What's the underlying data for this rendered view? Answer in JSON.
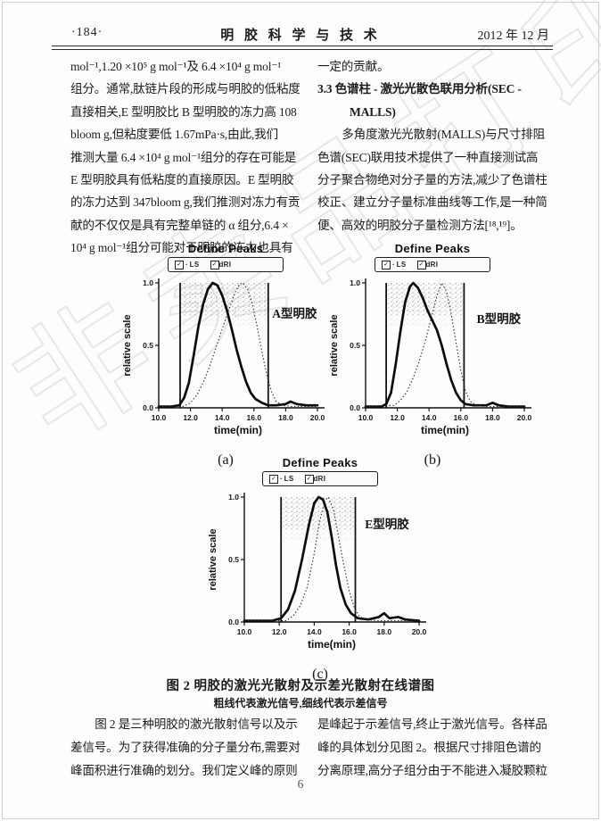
{
  "header": {
    "page_no": "·184·",
    "journal_title": "明 胶 科 学 与 技 术",
    "issue_date": "2012 年 12 月"
  },
  "left_column": {
    "lines": [
      "mol⁻¹,1.20 ×10⁵ g mol⁻¹及 6.4 ×10⁴ g mol⁻¹",
      "组分。通常,肽链片段的形成与明胶的低粘度",
      "直接相关,E 型明胶比 B 型明胶的冻力高 108",
      "bloom g,但粘度要低 1.67mPa·s,由此,我们",
      "推测大量 6.4 ×10⁴ g mol⁻¹组分的存在可能是",
      "E 型明胶具有低粘度的直接原因。E 型明胶",
      "的冻力达到 347bloom g,我们推测对冻力有贡",
      "献的不仅仅是具有完整单链的 α 组分,6.4 ×",
      "10⁴ g mol⁻¹组分可能对于明胶的冻力也具有"
    ]
  },
  "right_column": {
    "intro_line": "一定的贡献。",
    "section_heading_line1": "3.3  色谱柱 - 激光光散色联用分析(SEC -",
    "section_heading_line2": "MALLS)",
    "para_lines": [
      "多角度激光光散射(MALLS)与尺寸排阻",
      "色谱(SEC)联用技术提供了一种直接测试高",
      "分子聚合物绝对分子量的方法,减少了色谱柱",
      "校正、建立分子量标准曲线等工作,是一种简",
      "便、高效的明胶分子量检测方法[¹⁸,¹⁹]。"
    ]
  },
  "figure": {
    "caption_title": "图 2  明胶的激光光散射及示差光散射在线谱图",
    "caption_subtitle": "粗线代表激光信号,细线代表示差信号"
  },
  "bottom_left_column": {
    "lines": [
      "图 2 是三种明胶的激光散射信号以及示",
      "差信号。为了获得准确的分子量分布,需要对",
      "峰面积进行准确的划分。我们定义峰的原则"
    ]
  },
  "bottom_right_column": {
    "lines": [
      "是峰起于示差信号,终止于激光信号。各样品",
      "峰的具体划分见图 2。根据尺寸排阻色谱的",
      "分离原理,高分子组分由于不能进入凝胶颗粒"
    ]
  },
  "footer": {
    "page_number": "6"
  },
  "watermark_text": "非卖品打印",
  "chart_data": [
    {
      "type": "line",
      "panel_label": "(a)",
      "title": "Define Peaks",
      "legend_items": [
        {
          "checkbox": true,
          "prefix": "·",
          "label": "LS"
        },
        {
          "checkbox": true,
          "prefix": "",
          "label": "dRI"
        }
      ],
      "sample_label": "A型明胶",
      "sample_label_pos": [
        17.15,
        0.72
      ],
      "xlabel": "time(min)",
      "ylabel": "relative scale",
      "xlim": [
        10,
        20
      ],
      "ylim": [
        0,
        1
      ],
      "xtick_vals": [
        10,
        12,
        14,
        16,
        18,
        20
      ],
      "xtick_labels": [
        "10.0",
        "12.0",
        "14.0",
        "16.0",
        "18.0",
        "20.0"
      ],
      "ytick_vals": [
        0,
        0.5,
        1
      ],
      "ytick_labels": [
        "0.0",
        "0.5",
        "1.0"
      ],
      "grid": false,
      "peak_region": [
        11.35,
        16.9
      ],
      "series": [
        {
          "name": "LS",
          "style": "solid-thick",
          "points": [
            [
              10,
              0.01
            ],
            [
              10.8,
              0.01
            ],
            [
              11.3,
              0.02
            ],
            [
              11.6,
              0.08
            ],
            [
              11.9,
              0.2
            ],
            [
              12.2,
              0.42
            ],
            [
              12.5,
              0.65
            ],
            [
              12.8,
              0.83
            ],
            [
              13.1,
              0.95
            ],
            [
              13.4,
              1.0
            ],
            [
              13.7,
              0.98
            ],
            [
              14.0,
              0.9
            ],
            [
              14.3,
              0.78
            ],
            [
              14.6,
              0.63
            ],
            [
              14.9,
              0.47
            ],
            [
              15.2,
              0.33
            ],
            [
              15.5,
              0.21
            ],
            [
              15.8,
              0.12
            ],
            [
              16.1,
              0.07
            ],
            [
              16.5,
              0.04
            ],
            [
              16.9,
              0.02
            ],
            [
              17.4,
              0.02
            ],
            [
              18.0,
              0.03
            ],
            [
              18.3,
              0.05
            ],
            [
              18.7,
              0.03
            ],
            [
              19.3,
              0.02
            ],
            [
              20,
              0.02
            ]
          ]
        },
        {
          "name": "dRI",
          "style": "dotted",
          "points": [
            [
              10,
              0.01
            ],
            [
              11.5,
              0.01
            ],
            [
              12.0,
              0.04
            ],
            [
              12.4,
              0.1
            ],
            [
              12.8,
              0.2
            ],
            [
              13.2,
              0.33
            ],
            [
              13.6,
              0.48
            ],
            [
              14.0,
              0.63
            ],
            [
              14.4,
              0.78
            ],
            [
              14.8,
              0.92
            ],
            [
              15.1,
              0.99
            ],
            [
              15.3,
              1.0
            ],
            [
              15.6,
              0.95
            ],
            [
              15.9,
              0.83
            ],
            [
              16.2,
              0.65
            ],
            [
              16.5,
              0.45
            ],
            [
              16.8,
              0.27
            ],
            [
              17.1,
              0.13
            ],
            [
              17.4,
              0.05
            ],
            [
              17.8,
              0.02
            ],
            [
              18.4,
              0.01
            ],
            [
              20,
              0.01
            ]
          ]
        }
      ]
    },
    {
      "type": "line",
      "panel_label": "(b)",
      "title": "Define Peaks",
      "legend_items": [
        {
          "checkbox": true,
          "prefix": "·",
          "label": "LS"
        },
        {
          "checkbox": true,
          "prefix": "",
          "label": "dRI"
        }
      ],
      "sample_label": "B型明胶",
      "sample_label_pos": [
        17.0,
        0.68
      ],
      "xlabel": "time(min)",
      "ylabel": "relative scale",
      "xlim": [
        10,
        20
      ],
      "ylim": [
        0,
        1
      ],
      "xtick_vals": [
        10,
        12,
        14,
        16,
        18,
        20
      ],
      "xtick_labels": [
        "10.0",
        "12.0",
        "14.0",
        "16.0",
        "18.0",
        "20.0"
      ],
      "ytick_vals": [
        0,
        0.5,
        1
      ],
      "ytick_labels": [
        "0.0",
        "0.5",
        "1.0"
      ],
      "grid": false,
      "peak_region": [
        11.3,
        16.2
      ],
      "series": [
        {
          "name": "LS",
          "style": "solid-thick",
          "points": [
            [
              10,
              0.01
            ],
            [
              11.0,
              0.01
            ],
            [
              11.3,
              0.03
            ],
            [
              11.6,
              0.12
            ],
            [
              11.9,
              0.35
            ],
            [
              12.2,
              0.62
            ],
            [
              12.5,
              0.85
            ],
            [
              12.8,
              0.97
            ],
            [
              13.0,
              1.0
            ],
            [
              13.3,
              0.96
            ],
            [
              13.6,
              0.88
            ],
            [
              13.9,
              0.78
            ],
            [
              14.2,
              0.7
            ],
            [
              14.5,
              0.62
            ],
            [
              14.8,
              0.5
            ],
            [
              15.1,
              0.35
            ],
            [
              15.4,
              0.22
            ],
            [
              15.7,
              0.12
            ],
            [
              16.0,
              0.06
            ],
            [
              16.3,
              0.03
            ],
            [
              16.8,
              0.02
            ],
            [
              17.6,
              0.02
            ],
            [
              18.0,
              0.04
            ],
            [
              18.4,
              0.02
            ],
            [
              19.0,
              0.01
            ],
            [
              20,
              0.01
            ]
          ]
        },
        {
          "name": "dRI",
          "style": "dotted",
          "points": [
            [
              10,
              0.01
            ],
            [
              11.8,
              0.02
            ],
            [
              12.2,
              0.06
            ],
            [
              12.6,
              0.13
            ],
            [
              13.0,
              0.24
            ],
            [
              13.4,
              0.38
            ],
            [
              13.8,
              0.55
            ],
            [
              14.2,
              0.75
            ],
            [
              14.5,
              0.9
            ],
            [
              14.8,
              1.0
            ],
            [
              15.1,
              0.93
            ],
            [
              15.4,
              0.75
            ],
            [
              15.7,
              0.52
            ],
            [
              16.0,
              0.3
            ],
            [
              16.3,
              0.13
            ],
            [
              16.6,
              0.05
            ],
            [
              17.0,
              0.02
            ],
            [
              17.6,
              0.01
            ],
            [
              20,
              0.01
            ]
          ]
        }
      ]
    },
    {
      "type": "line",
      "panel_label": "(c)",
      "title": "Define Peaks",
      "wide": true,
      "legend_items": [
        {
          "checkbox": true,
          "prefix": "·",
          "label": "LS"
        },
        {
          "checkbox": true,
          "prefix": "",
          "label": "dRI"
        }
      ],
      "sample_label": "E型明胶",
      "sample_label_pos": [
        16.9,
        0.75
      ],
      "xlabel": "time(min)",
      "ylabel": "relative scale",
      "xlim": [
        10,
        20
      ],
      "ylim": [
        0,
        1
      ],
      "xtick_vals": [
        10,
        12,
        14,
        16,
        18,
        20
      ],
      "xtick_labels": [
        "10.0",
        "12.0",
        "14.0",
        "16.0",
        "18.0",
        "20.0"
      ],
      "ytick_vals": [
        0,
        0.5,
        1
      ],
      "ytick_labels": [
        "0.0",
        "0.5",
        "1.0"
      ],
      "grid": false,
      "peak_region": [
        12.1,
        16.35
      ],
      "series": [
        {
          "name": "LS",
          "style": "solid-thick",
          "points": [
            [
              10,
              0.01
            ],
            [
              11.6,
              0.01
            ],
            [
              12.1,
              0.03
            ],
            [
              12.5,
              0.1
            ],
            [
              12.9,
              0.25
            ],
            [
              13.3,
              0.5
            ],
            [
              13.7,
              0.78
            ],
            [
              14.0,
              0.95
            ],
            [
              14.25,
              1.0
            ],
            [
              14.5,
              0.98
            ],
            [
              14.75,
              0.88
            ],
            [
              15.0,
              0.68
            ],
            [
              15.25,
              0.45
            ],
            [
              15.5,
              0.27
            ],
            [
              15.8,
              0.14
            ],
            [
              16.1,
              0.07
            ],
            [
              16.5,
              0.03
            ],
            [
              17.1,
              0.02
            ],
            [
              17.7,
              0.04
            ],
            [
              18.0,
              0.07
            ],
            [
              18.3,
              0.03
            ],
            [
              18.8,
              0.04
            ],
            [
              19.2,
              0.02
            ],
            [
              20,
              0.01
            ]
          ]
        },
        {
          "name": "dRI",
          "style": "dotted",
          "points": [
            [
              10,
              0.01
            ],
            [
              12.4,
              0.01
            ],
            [
              12.8,
              0.05
            ],
            [
              13.2,
              0.13
            ],
            [
              13.6,
              0.28
            ],
            [
              14.0,
              0.55
            ],
            [
              14.3,
              0.8
            ],
            [
              14.6,
              0.97
            ],
            [
              14.8,
              1.0
            ],
            [
              15.1,
              0.9
            ],
            [
              15.4,
              0.68
            ],
            [
              15.7,
              0.45
            ],
            [
              16.0,
              0.25
            ],
            [
              16.3,
              0.11
            ],
            [
              16.6,
              0.04
            ],
            [
              17.0,
              0.02
            ],
            [
              17.6,
              0.01
            ],
            [
              20,
              0.01
            ]
          ]
        }
      ]
    }
  ]
}
